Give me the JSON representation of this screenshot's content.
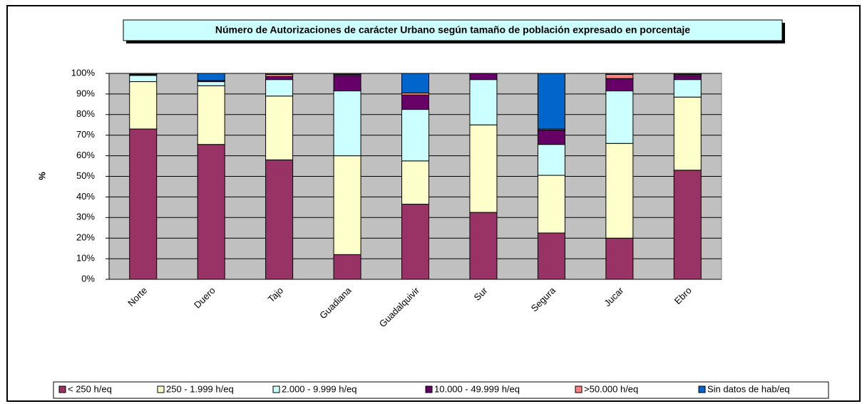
{
  "chart_data": {
    "type": "stacked_bar_100",
    "title": "Número de Autorizaciones de carácter Urbano según tamaño de población expresado en porcentaje",
    "y_label": "%",
    "categories": [
      "Norte",
      "Duero",
      "Tajo",
      "Guadiana",
      "Guadalquivir",
      "Sur",
      "Segura",
      "Jucar",
      "Ebro"
    ],
    "series": [
      {
        "name": "< 250 h/eq",
        "color": "#993366",
        "values": [
          73,
          65.5,
          58,
          12,
          36.5,
          32.5,
          22.5,
          20,
          53
        ]
      },
      {
        "name": "250 - 1.999 h/eq",
        "color": "#ffffcc",
        "values": [
          23,
          28.5,
          31,
          48,
          21,
          42.5,
          28,
          46,
          35.5
        ]
      },
      {
        "name": "2.000 - 9.999 h/eq",
        "color": "#ccffff",
        "values": [
          3,
          2,
          8,
          31.5,
          25,
          22,
          15,
          25.5,
          8.5
        ]
      },
      {
        "name": "10.000 - 49.999 h/eq",
        "color": "#660066",
        "values": [
          0.5,
          0.5,
          1.5,
          7.5,
          7,
          3,
          7,
          6,
          2
        ]
      },
      {
        "name": ">50.000 h/eq",
        "color": "#ff8080",
        "values": [
          0,
          0,
          1,
          0.5,
          1,
          0,
          0.5,
          2,
          0.5
        ]
      },
      {
        "name": "Sin datos de hab/eq",
        "color": "#0066cc",
        "values": [
          0.5,
          3.5,
          0.5,
          0.5,
          9.5,
          0,
          27,
          0.5,
          0.5
        ]
      }
    ],
    "ylim": [
      0,
      100
    ],
    "yticks": [
      {
        "value": 0,
        "label": "0%"
      },
      {
        "value": 10,
        "label": "10%"
      },
      {
        "value": 20,
        "label": "20%"
      },
      {
        "value": 30,
        "label": "30%"
      },
      {
        "value": 40,
        "label": "40%"
      },
      {
        "value": 50,
        "label": "50%"
      },
      {
        "value": 60,
        "label": "60%"
      },
      {
        "value": 70,
        "label": "70%"
      },
      {
        "value": 80,
        "label": "80%"
      },
      {
        "value": 90,
        "label": "90%"
      },
      {
        "value": 100,
        "label": "100%"
      }
    ],
    "grid": true,
    "plot_background": "#c0c0c0",
    "legend": "bottom"
  }
}
